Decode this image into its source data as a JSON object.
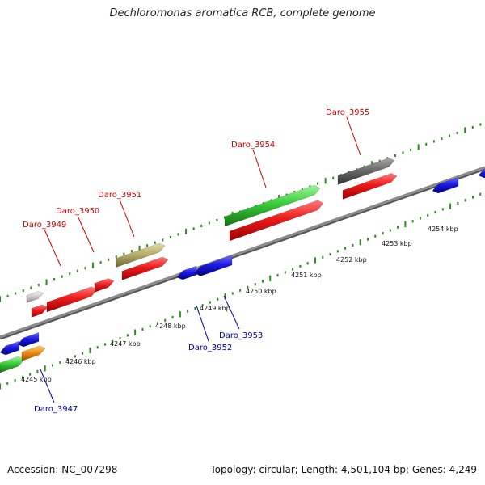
{
  "title": "Dechloromonas aromatica RCB, complete genome",
  "footer": {
    "accession": "Accession: NC_007298",
    "topology": "Topology: circular; Length: 4,501,104 bp; Genes: 4,249"
  },
  "colors": {
    "backbone": "#8c8c8c",
    "tick": "#2e8b1e",
    "red": "#e81010",
    "blue": "#1a1ae0",
    "green": "#3ccc3c",
    "khaki": "#b8b070",
    "gray": "#6e6e6e",
    "light-gray": "#c8c8c8",
    "orange": "#f08c10",
    "top_label": "#cc0000",
    "bottom_label": "#0000aa"
  },
  "scale_labels": [
    "4245 kbp",
    "4246 kbp",
    "4247 kbp",
    "4248 kbp",
    "4249 kbp",
    "4250 kbp",
    "4251 kbp",
    "4252 kbp",
    "4253 kbp",
    "4254 kbp"
  ],
  "gene_labels_top": [
    "Daro_3949",
    "Daro_3950",
    "Daro_3951",
    "Daro_3954",
    "Daro_3955"
  ],
  "gene_labels_bottom": [
    "Daro_3947",
    "Daro_3952",
    "Daro_3953"
  ]
}
